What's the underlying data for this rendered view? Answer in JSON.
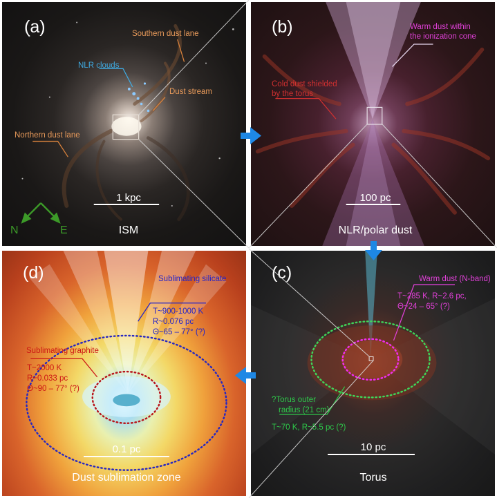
{
  "panels": {
    "a": {
      "label": "(a)",
      "scale": "1 kpc",
      "name": "ISM",
      "annotations": {
        "southern_dust_lane": "Southern dust lane",
        "nlr_clouds": "NLR clouds",
        "dust_stream": "Dust stream",
        "northern_dust_lane": "Northern dust lane"
      },
      "compass": {
        "north": "N",
        "east": "E"
      }
    },
    "b": {
      "label": "(b)",
      "scale": "100 pc",
      "name": "NLR/polar dust",
      "annotations": {
        "warm_dust_1": "Warm dust within",
        "warm_dust_2": "the ionization cone",
        "cold_dust_1": "Cold dust shielded",
        "cold_dust_2": "by the torus"
      }
    },
    "c": {
      "label": "(c)",
      "scale": "10 pc",
      "name": "Torus",
      "annotations": {
        "warm_dust_title": "Warm dust (N-band)",
        "warm_dust_line1": "T~285 K, R~2.6 pc,",
        "warm_dust_line2": "Θ~24 – 65° (?)",
        "outer_line1": "?Torus outer",
        "outer_line2": "radius (21 cm)",
        "outer_line3": "T~70 K, R~5.5 pc (?)"
      }
    },
    "d": {
      "label": "(d)",
      "scale": "0.1 pc",
      "name": "Dust sublimation zone",
      "annotations": {
        "silicate_title": "Sublimating silicate",
        "silicate_line1": "T~900-1000 K",
        "silicate_line2": "R~0.076 pc",
        "silicate_line3": "Θ~65 – 77° (?)",
        "graphite_title": "Sublimating graphite",
        "graphite_line1": "T~2000 K",
        "graphite_line2": "R~0.033 pc",
        "graphite_line3": "Θ~90 – 77° (?)"
      }
    }
  },
  "colors": {
    "annotation_orange": "#e89a5a",
    "annotation_blue": "#3fa9e0",
    "annotation_magenta": "#e040d8",
    "annotation_red": "#d03030",
    "annotation_navy": "#2424c8",
    "annotation_dark_red": "#cc1515",
    "annotation_green": "#2ec84a",
    "arrow_blue": "#1e88e5",
    "compass_green": "#3c9a28"
  }
}
